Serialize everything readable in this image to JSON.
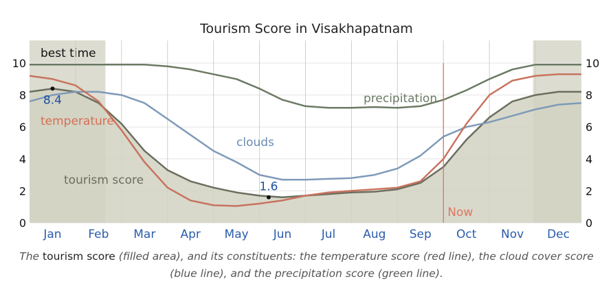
{
  "chart_data": {
    "type": "line",
    "title": "Tourism Score in Visakhapatnam",
    "months": [
      "Jan",
      "Feb",
      "Mar",
      "Apr",
      "May",
      "Jun",
      "Jul",
      "Aug",
      "Sep",
      "Oct",
      "Nov",
      "Dec"
    ],
    "ylim": [
      0,
      10
    ],
    "yticks": [
      0,
      2,
      4,
      6,
      8,
      10
    ],
    "x_range": [
      0,
      12
    ],
    "grid": true,
    "best_time": {
      "label": "best time",
      "ranges": [
        [
          0,
          1.65
        ],
        [
          10.95,
          12
        ]
      ]
    },
    "now": {
      "label": "Now",
      "x": 9.0
    },
    "series": [
      {
        "name": "tourism score",
        "kind": "area",
        "color": "#6b6e5e",
        "fill": "#d1d2c2",
        "label": "tourism score",
        "x": [
          0,
          0.5,
          1,
          1.5,
          2,
          2.5,
          3,
          3.5,
          4,
          4.5,
          5,
          5.5,
          6,
          6.5,
          7,
          7.5,
          8,
          8.5,
          9,
          9.5,
          10,
          10.5,
          11,
          11.5,
          12
        ],
        "values": [
          8.2,
          8.4,
          8.2,
          7.5,
          6.2,
          4.5,
          3.3,
          2.6,
          2.2,
          1.9,
          1.7,
          1.6,
          1.7,
          1.8,
          1.9,
          1.95,
          2.1,
          2.5,
          3.5,
          5.2,
          6.6,
          7.6,
          8.0,
          8.2,
          8.2
        ]
      },
      {
        "name": "temperature",
        "kind": "line",
        "color": "#c8735f",
        "label": "temperature",
        "x": [
          0,
          0.5,
          1,
          1.5,
          2,
          2.5,
          3,
          3.5,
          4,
          4.5,
          5,
          5.5,
          6,
          6.5,
          7,
          7.5,
          8,
          8.5,
          9,
          9.5,
          10,
          10.5,
          11,
          11.5,
          12
        ],
        "values": [
          9.2,
          9.0,
          8.6,
          7.6,
          5.8,
          3.8,
          2.2,
          1.4,
          1.1,
          1.05,
          1.2,
          1.4,
          1.7,
          1.9,
          2.0,
          2.1,
          2.2,
          2.6,
          4.0,
          6.2,
          8.0,
          8.9,
          9.2,
          9.3,
          9.3
        ]
      },
      {
        "name": "clouds",
        "kind": "line",
        "color": "#7f9ab8",
        "label": "clouds",
        "x": [
          0,
          0.5,
          1,
          1.5,
          2,
          2.5,
          3,
          3.5,
          4,
          4.5,
          5,
          5.5,
          6,
          6.5,
          7,
          7.5,
          8,
          8.5,
          9,
          9.5,
          10,
          10.5,
          11,
          11.5,
          12
        ],
        "values": [
          7.6,
          8.0,
          8.2,
          8.2,
          8.0,
          7.5,
          6.5,
          5.5,
          4.5,
          3.8,
          3.0,
          2.7,
          2.7,
          2.75,
          2.8,
          3.0,
          3.4,
          4.2,
          5.4,
          6.0,
          6.3,
          6.7,
          7.1,
          7.4,
          7.5
        ]
      },
      {
        "name": "precipitation",
        "kind": "line",
        "color": "#6b7a63",
        "label": "precipitation",
        "x": [
          0,
          0.5,
          1,
          1.5,
          2,
          2.5,
          3,
          3.5,
          4,
          4.5,
          5,
          5.5,
          6,
          6.5,
          7,
          7.5,
          8,
          8.5,
          9,
          9.5,
          10,
          10.5,
          11,
          11.5,
          12
        ],
        "values": [
          9.9,
          9.9,
          9.9,
          9.9,
          9.9,
          9.9,
          9.8,
          9.6,
          9.3,
          9.0,
          8.4,
          7.7,
          7.3,
          7.2,
          7.2,
          7.25,
          7.2,
          7.3,
          7.7,
          8.3,
          9.0,
          9.6,
          9.9,
          9.9,
          9.9
        ]
      }
    ],
    "annotations": [
      {
        "label": "8.4",
        "x": 0.5,
        "y": 8.4,
        "kind": "max"
      },
      {
        "label": "1.6",
        "x": 5.2,
        "y": 1.6,
        "kind": "min"
      }
    ]
  },
  "caption": {
    "pre": "The ",
    "em": "tourism score",
    "post": " (filled area), and its constituents: the temperature score (red line), the cloud cover score (blue line), and the precipitation score (green line)."
  }
}
